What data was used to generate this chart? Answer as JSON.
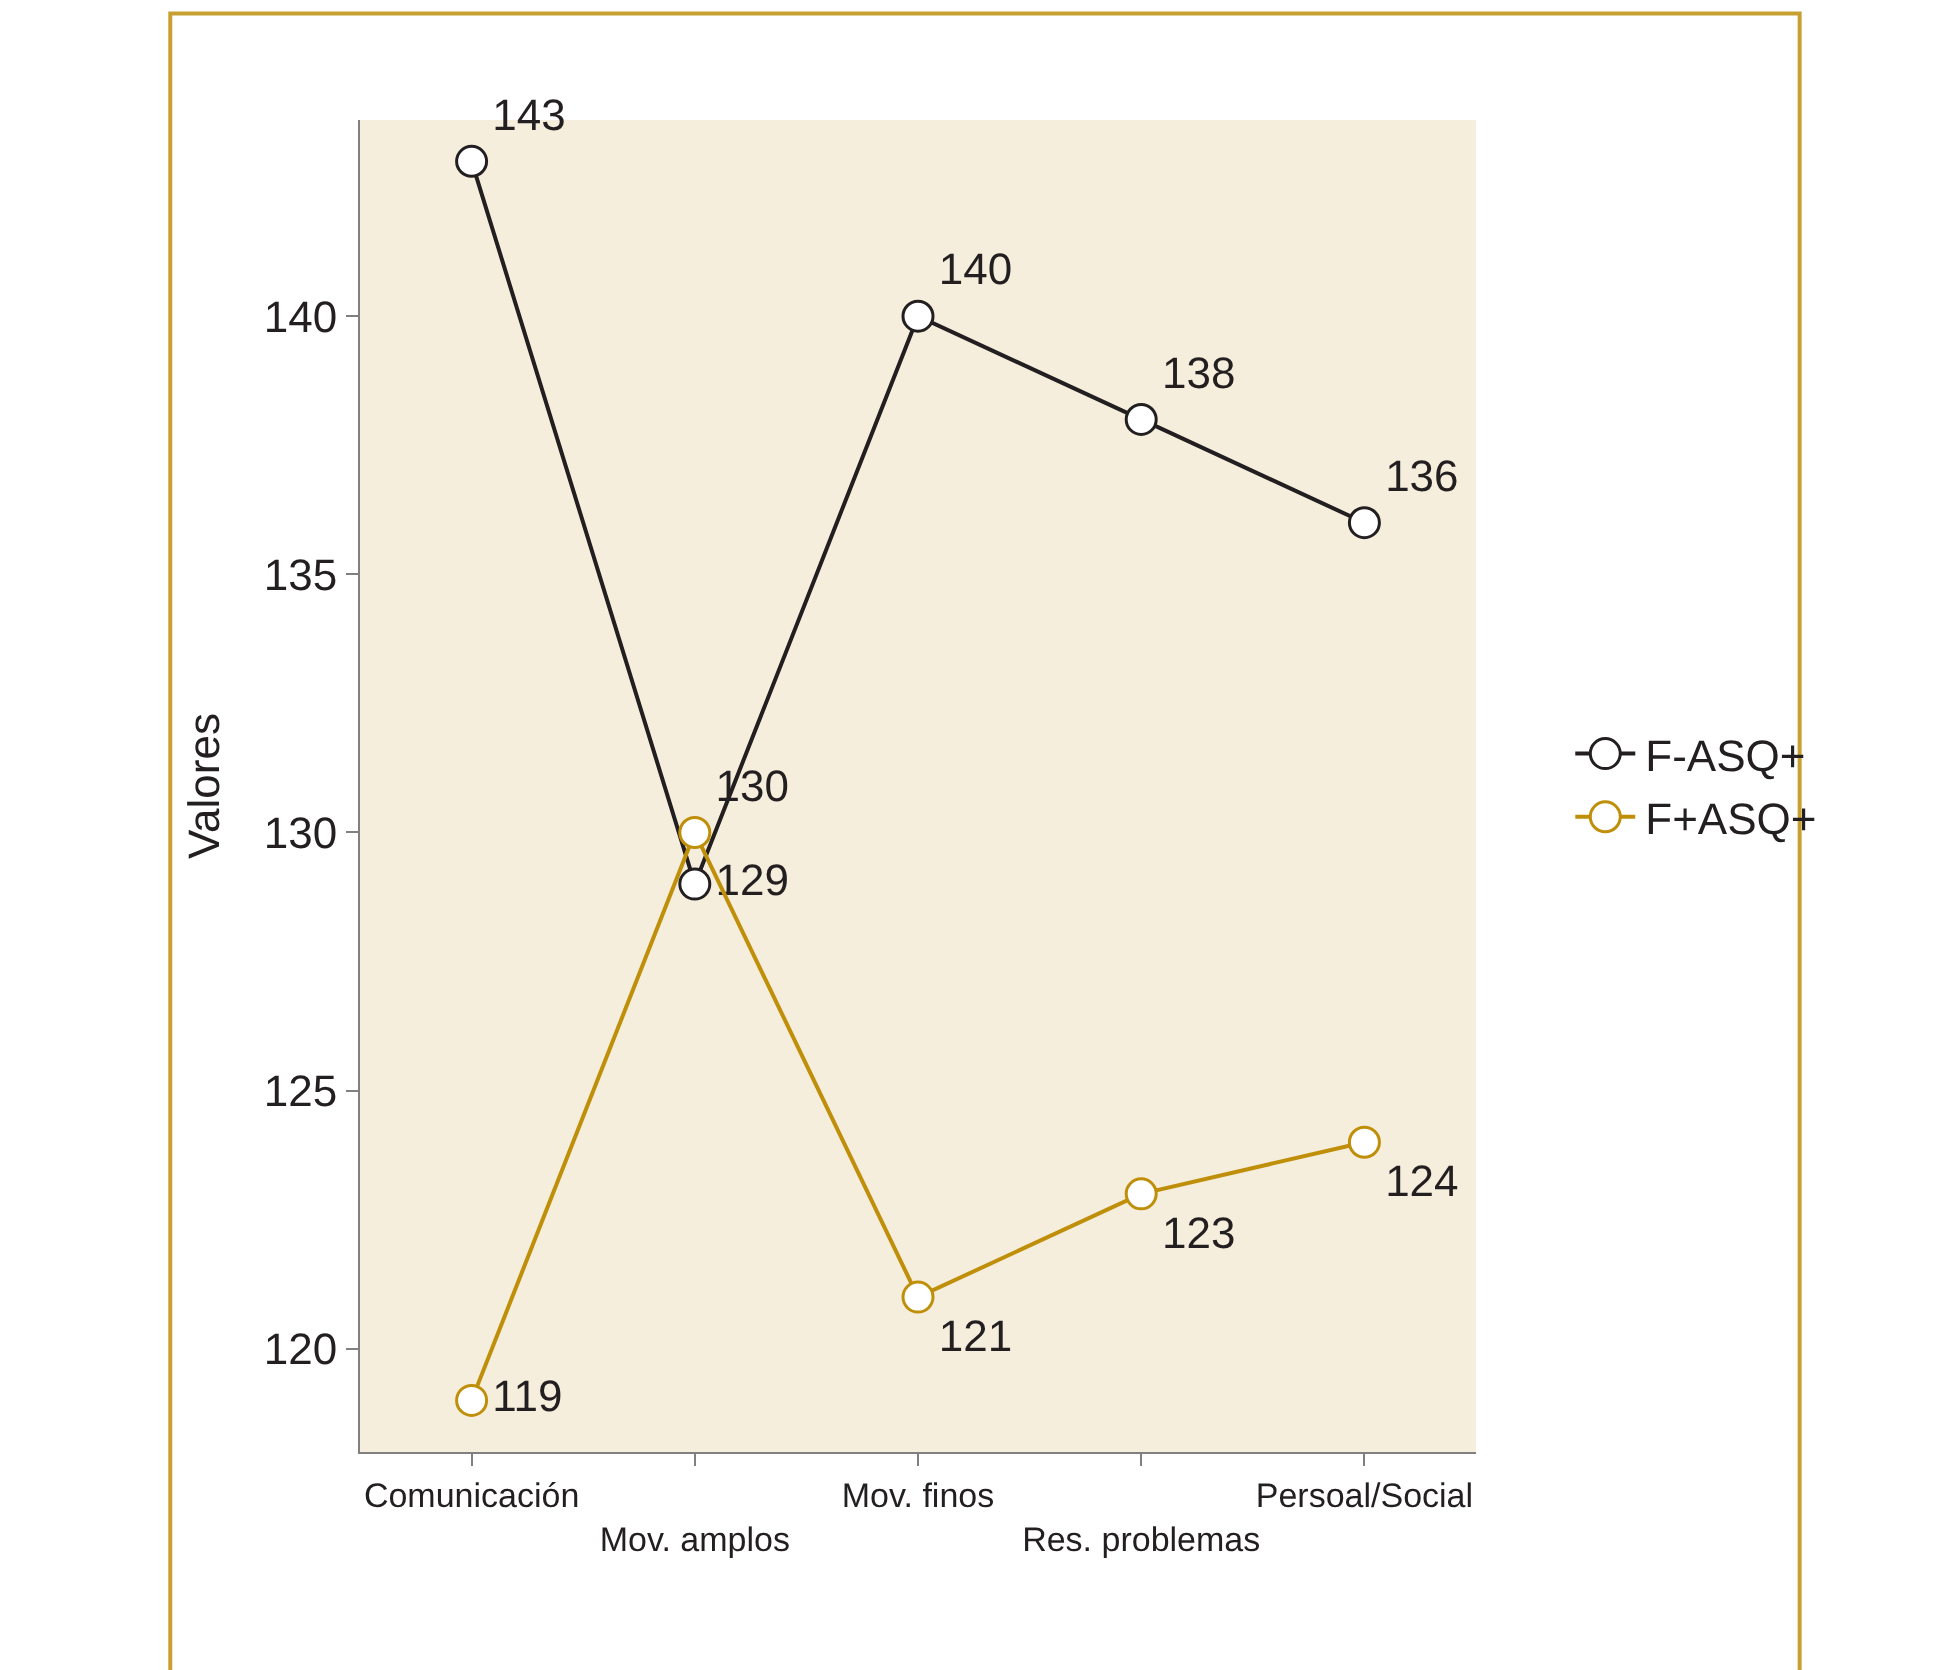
{
  "chart_data": {
    "type": "line",
    "ylabel": "Valores",
    "categories": [
      "Comunicación",
      "Mov. amplos",
      "Mov. finos",
      "Res. problemas",
      "Persoal/Social"
    ],
    "series": [
      {
        "name": "F-ASQ+",
        "color": "#231f20",
        "values": [
          143,
          129,
          140,
          138,
          136
        ]
      },
      {
        "name": "F+ASQ+",
        "color": "#bf8f0a",
        "values": [
          119,
          130,
          121,
          123,
          124
        ]
      }
    ],
    "ylim": [
      118,
      143.8
    ],
    "yticks": [
      120,
      125,
      130,
      135,
      140
    ],
    "data_labels": true,
    "grid": false,
    "legend": "right",
    "marker": "circle",
    "line_style": "solid"
  }
}
